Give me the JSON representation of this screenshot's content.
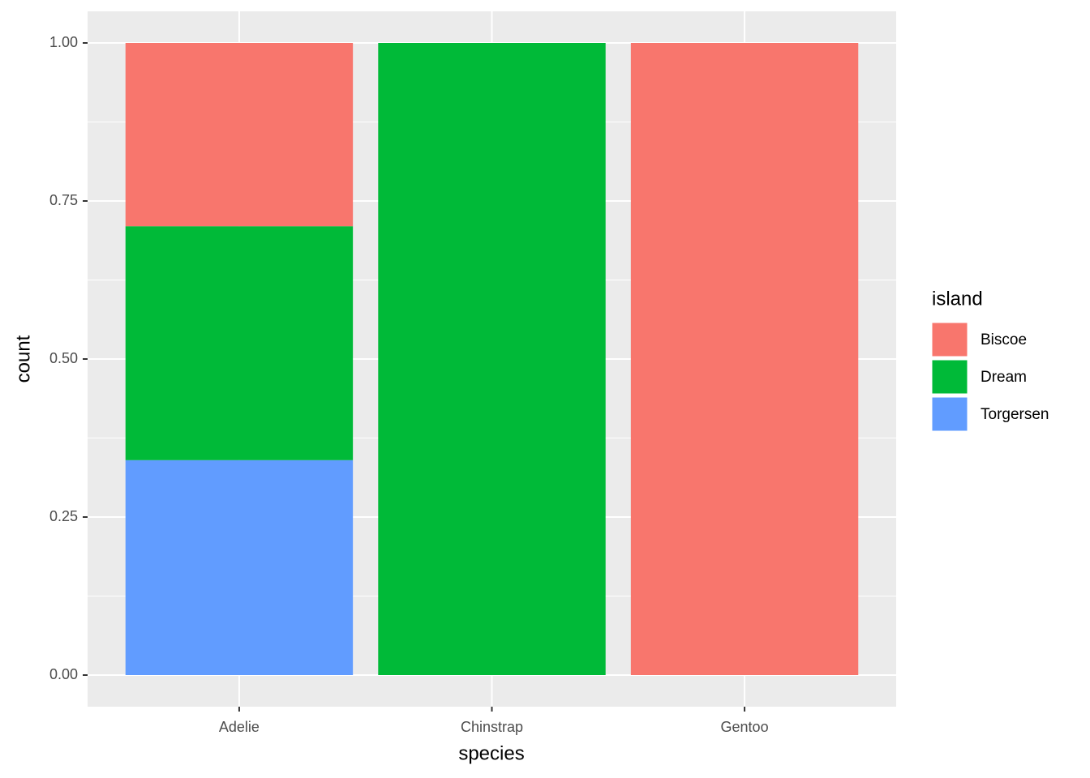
{
  "chart_data": {
    "type": "bar",
    "stacked": true,
    "x_label": "species",
    "y_label": "count",
    "legend_title": "island",
    "categories": [
      "Adelie",
      "Chinstrap",
      "Gentoo"
    ],
    "series": [
      {
        "name": "Biscoe",
        "color": "#F8766D",
        "values": [
          0.29,
          0,
          1
        ]
      },
      {
        "name": "Dream",
        "color": "#00BA38",
        "values": [
          0.37,
          1,
          0
        ]
      },
      {
        "name": "Torgersen",
        "color": "#619CFF",
        "values": [
          0.34,
          0,
          0
        ]
      }
    ],
    "ylim": [
      -0.05,
      1.05
    ],
    "yticks": [
      {
        "value": 0,
        "label": "0.00"
      },
      {
        "value": 0.25,
        "label": "0.25"
      },
      {
        "value": 0.5,
        "label": "0.50"
      },
      {
        "value": 0.75,
        "label": "0.75"
      },
      {
        "value": 1,
        "label": "1.00"
      }
    ],
    "grid": true,
    "legend": "right"
  }
}
